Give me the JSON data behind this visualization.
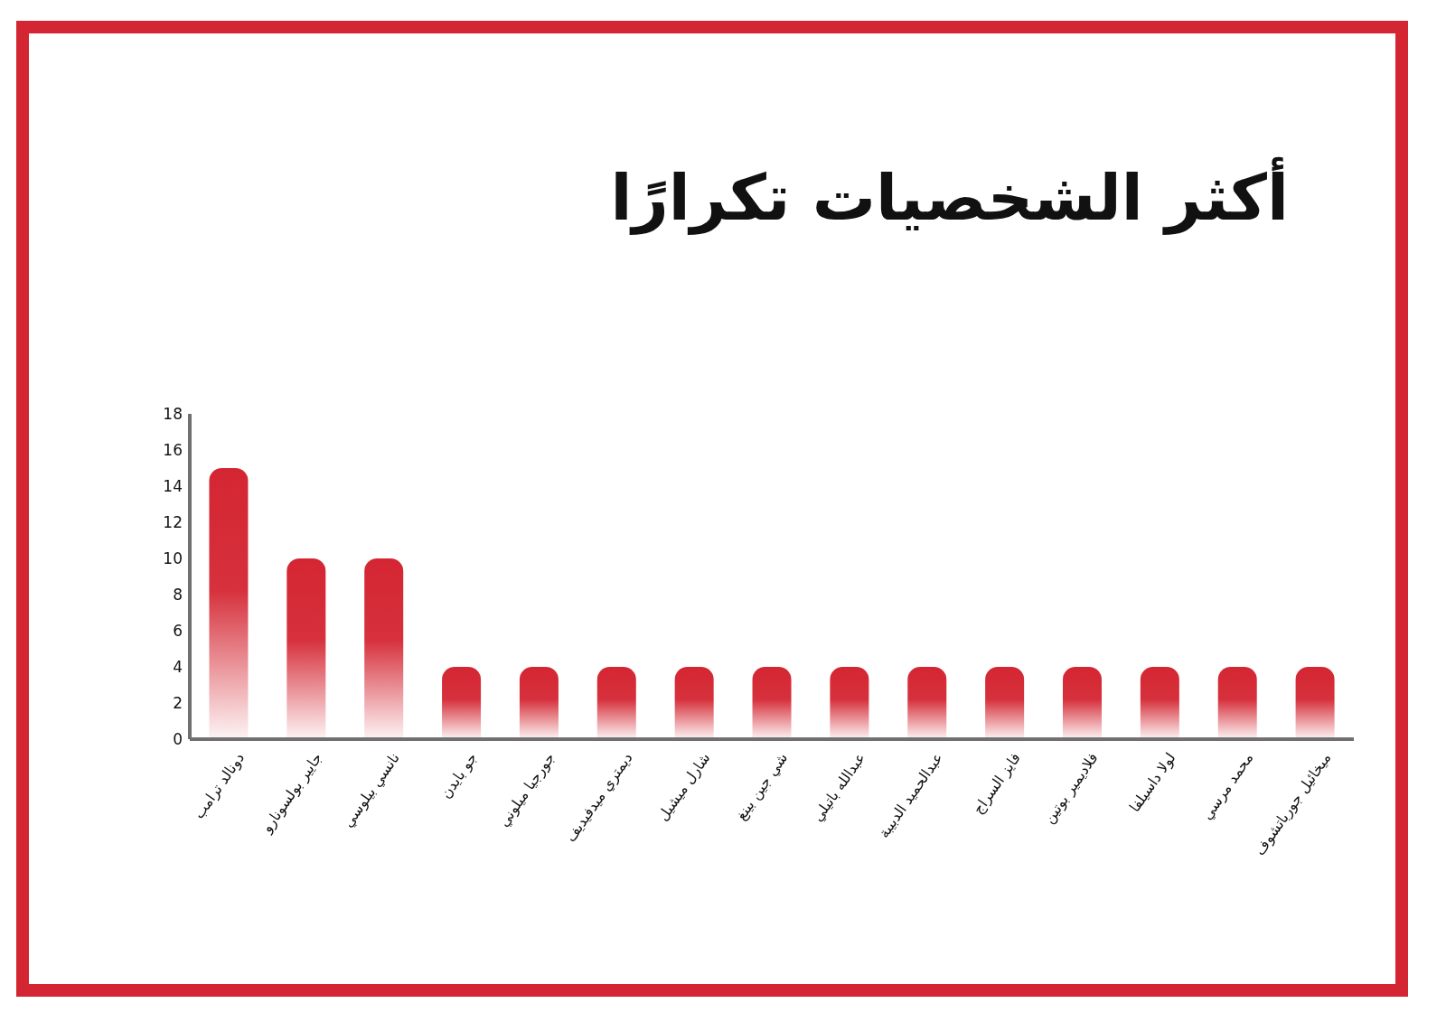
{
  "chart_data": {
    "type": "bar",
    "title": "أكثر الشخصيات تكرارًا",
    "categories": [
      "دونالد ترامب",
      "جايير بولسونارو",
      "نانسي بيلوسي",
      "جو بايدن",
      "جورجيا ميلوني",
      "ديمتري ميدفيديف",
      "شارل ميشيل",
      "شي جين بينغ",
      "عبدالله باتيلي",
      "عبدالحميد الدبيبة",
      "فايز السراج",
      "فلاديمير بوتين",
      "لولا داسيلفا",
      "محمد مرسي",
      "ميخائيل جورباتشوف"
    ],
    "values": [
      15,
      10,
      10,
      4,
      4,
      4,
      4,
      4,
      4,
      4,
      4,
      4,
      4,
      4,
      4
    ],
    "color": "#d42632",
    "ylim": [
      0,
      18
    ],
    "yticks": [
      0,
      2,
      4,
      6,
      8,
      10,
      12,
      14,
      16,
      18
    ],
    "grid": false
  }
}
